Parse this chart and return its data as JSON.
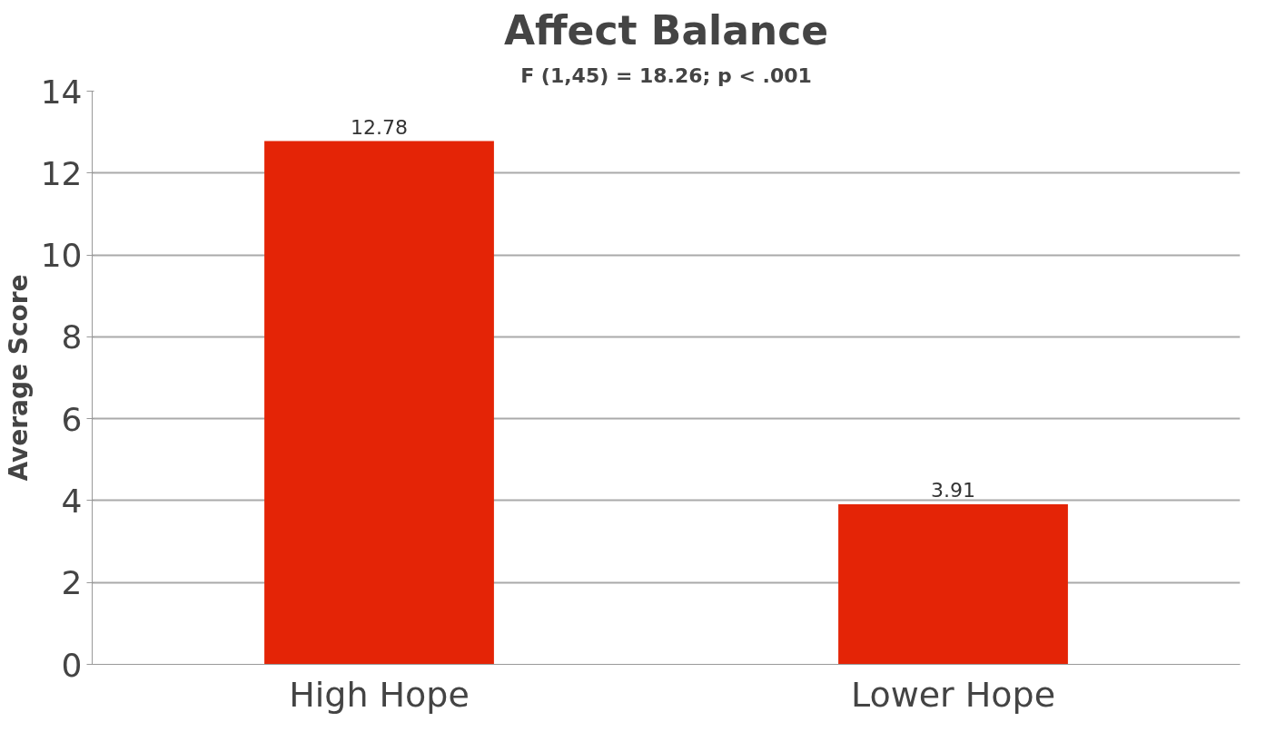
{
  "chart_data": {
    "type": "bar",
    "title": "Affect Balance",
    "subtitle": "F (1,45) = 18.26; p < .001",
    "ylabel": "Average Score",
    "categories": [
      "High Hope",
      "Lower Hope"
    ],
    "values": [
      12.78,
      3.91
    ],
    "color": "#e42406",
    "ylim": [
      0,
      14
    ],
    "yticks": [
      0,
      2,
      4,
      6,
      8,
      10,
      12,
      14
    ],
    "grid": "y",
    "data_labels": true
  }
}
